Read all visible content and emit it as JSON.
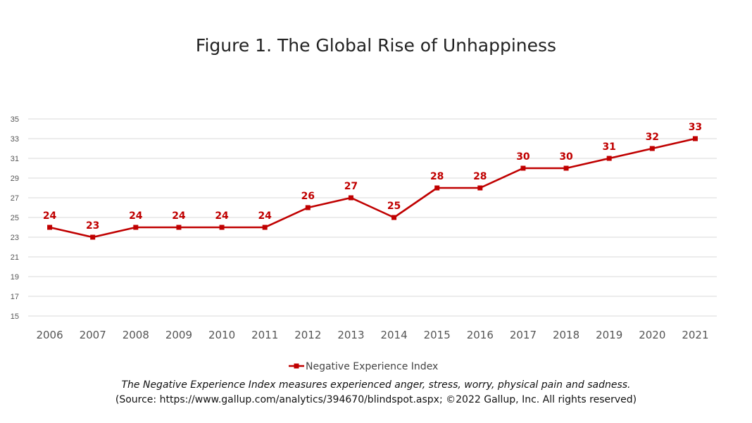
{
  "chart_data": {
    "type": "line",
    "title": "Figure 1. The Global Rise of Unhappiness",
    "categories": [
      "2006",
      "2007",
      "2008",
      "2009",
      "2010",
      "2011",
      "2012",
      "2013",
      "2014",
      "2015",
      "2016",
      "2017",
      "2018",
      "2019",
      "2020",
      "2021"
    ],
    "series": [
      {
        "name": "Negative Experience Index",
        "values": [
          24,
          23,
          24,
          24,
          24,
          24,
          26,
          27,
          25,
          28,
          28,
          30,
          30,
          31,
          32,
          33
        ],
        "color": "#c00000"
      }
    ],
    "yticks": [
      15,
      17,
      19,
      21,
      23,
      25,
      27,
      29,
      31,
      33,
      35
    ],
    "ylim": [
      15,
      35
    ],
    "grid": true,
    "legend": "bottom",
    "marker": "square",
    "data_labels": true
  },
  "footnote": {
    "note": "The Negative Experience Index measures experienced anger, stress, worry, physical pain and sadness.",
    "source": "(Source: https://www.gallup.com/analytics/394670/blindspot.aspx; ©2022 Gallup, Inc. All rights reserved)"
  },
  "colors": {
    "series": "#c00000",
    "grid": "#d9d9d9",
    "text": "#555555"
  }
}
